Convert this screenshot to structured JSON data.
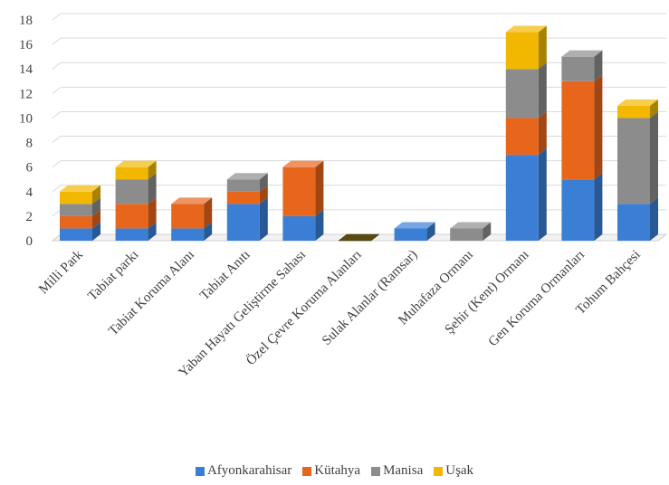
{
  "chart_data": {
    "type": "bar",
    "stacked": true,
    "three_d": true,
    "categories": [
      "Milli Park",
      "Tabiat parkı",
      "Tabiat Koruma Alanı",
      "Tabiat Anıtı",
      "Yaban Hayatı Geliştirme Sahası",
      "Özel Çevre Koruma Alanları",
      "Sulak Alanlar (Ramsar)",
      "Muhafaza Ormanı",
      "Şehir (Kent) Ormanı",
      "Gen Koruma Ormanları",
      "Tohum Bahçesi"
    ],
    "series": [
      {
        "name": "Afyonkarahisar",
        "color": "#3a7fd5",
        "values": [
          1,
          1,
          1,
          3,
          2,
          0,
          1,
          0,
          7,
          5,
          3
        ]
      },
      {
        "name": "Kütahya",
        "color": "#e8661c",
        "values": [
          1,
          2,
          2,
          1,
          4,
          0,
          0,
          0,
          3,
          8,
          0
        ]
      },
      {
        "name": "Manisa",
        "color": "#8c8c8c",
        "values": [
          1,
          2,
          0,
          1,
          0,
          0,
          0,
          1,
          4,
          2,
          7
        ]
      },
      {
        "name": "Uşak",
        "color": "#f2b800",
        "values": [
          1,
          1,
          0,
          0,
          0,
          0,
          0,
          0,
          3,
          0,
          1
        ]
      }
    ],
    "yticks": [
      "0",
      "2",
      "4",
      "6",
      "8",
      "10",
      "12",
      "14",
      "16",
      "18"
    ],
    "ylim": [
      0,
      18
    ],
    "grid": true,
    "legend_position": "bottom"
  }
}
